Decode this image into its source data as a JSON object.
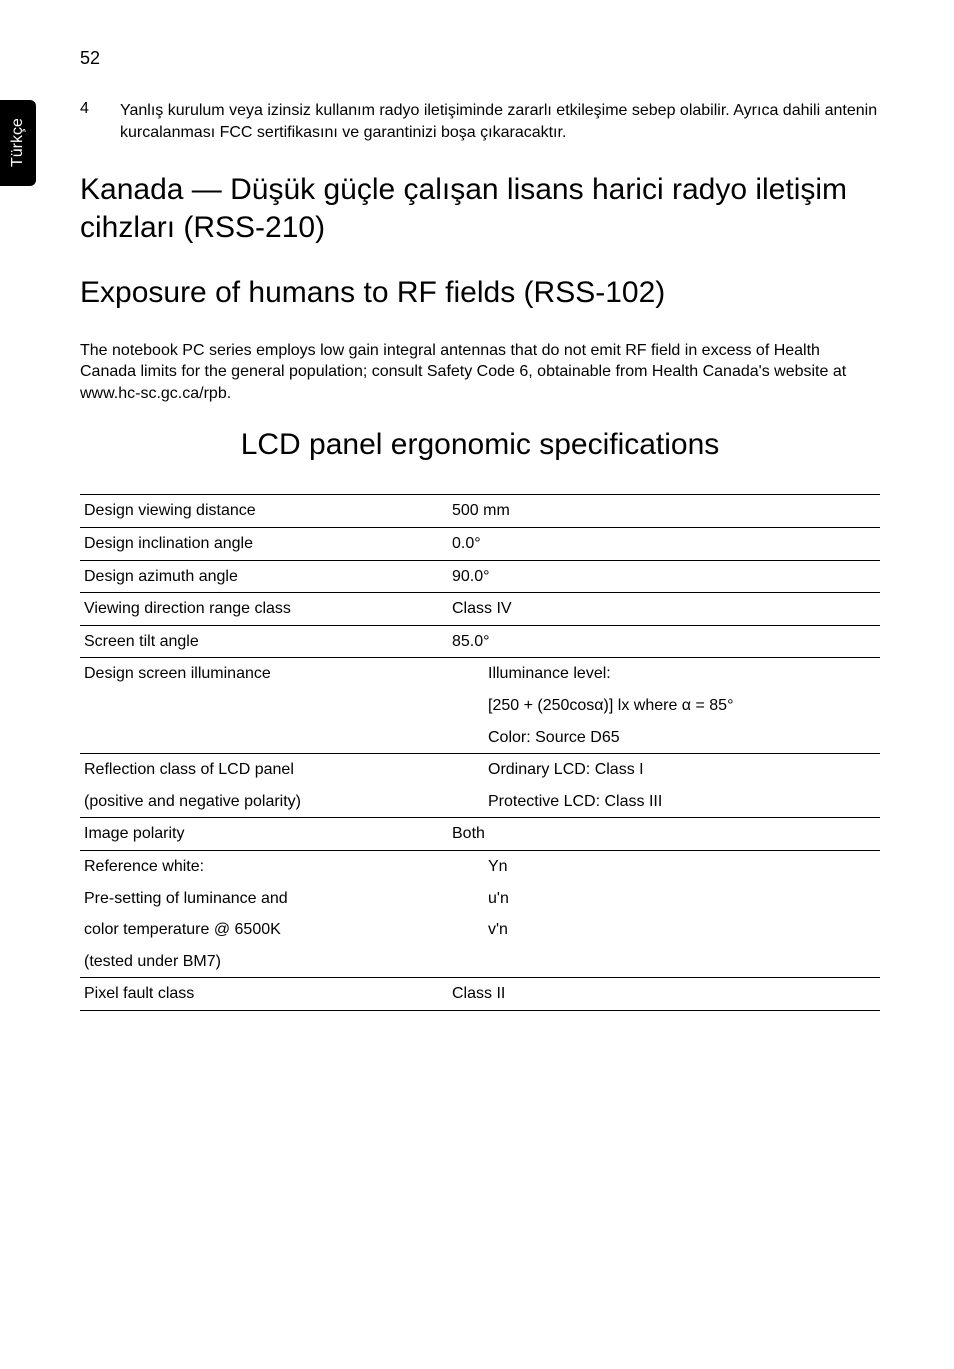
{
  "page": {
    "number": "52",
    "side_tab": "Türkçe"
  },
  "list_item": {
    "num": "4",
    "text": "Yanlış kurulum veya izinsiz kullanım radyo iletişiminde zararlı etkileşime sebep olabilir. Ayrıca dahili antenin kurcalanması FCC sertifikasını ve garantinizi boşa çıkaracaktır."
  },
  "heading1": "Kanada — Düşük güçle çalışan lisans harici radyo iletişim cihzları (RSS-210)",
  "heading2": "Exposure of humans to RF fields (RSS-102)",
  "paragraph": "The notebook PC series employs low gain integral antennas that do not emit RF field in excess of Health Canada limits for the general population; consult Safety Code 6, obtainable from Health Canada's website at www.hc-sc.gc.ca/rpb.",
  "heading3": "LCD panel ergonomic specifications",
  "table": {
    "rows": [
      {
        "label": "Design viewing distance",
        "value": "500 mm"
      },
      {
        "label": "Design inclination angle",
        "value": "0.0°"
      },
      {
        "label": "Design azimuth angle",
        "value": "90.0°"
      },
      {
        "label": "Viewing direction range class",
        "value": "Class IV"
      },
      {
        "label": "Screen tilt angle",
        "value": "85.0°"
      }
    ],
    "illuminance": {
      "label": "Design screen illuminance",
      "line1": "Illuminance level:",
      "line2": "[250 + (250cosα)] lx where α = 85°",
      "line3": "Color: Source D65"
    },
    "reflection": {
      "label1": "Reflection class of LCD panel",
      "label2": "(positive and negative polarity)",
      "line1": "Ordinary LCD: Class I",
      "line2": "Protective LCD: Class III"
    },
    "polarity": {
      "label": "Image polarity",
      "value": "Both"
    },
    "refwhite": {
      "label1": "Reference white:",
      "label2": "Pre-setting of luminance and",
      "label3": "color temperature @ 6500K",
      "label4": "(tested under BM7)",
      "line1": "Yn",
      "line2": "u'n",
      "line3": "v'n"
    },
    "pixel": {
      "label": "Pixel fault class",
      "value": "Class II"
    }
  }
}
